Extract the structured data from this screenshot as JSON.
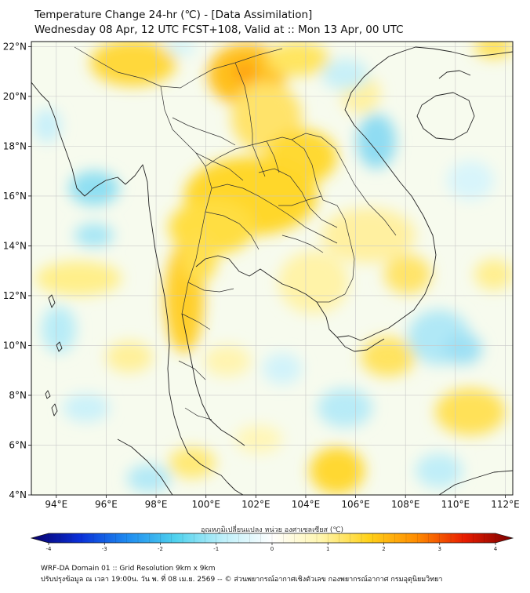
{
  "title": {
    "line1": "Temperature Change 24-hr (℃) - [Data Assimilation]",
    "line2": "Wednesday 08 Apr, 12 UTC FCST+108, Valid at :: Mon 13 Apr, 00 UTC"
  },
  "map": {
    "lat_labels": [
      "22°N",
      "20°N",
      "18°N",
      "16°N",
      "14°N",
      "12°N",
      "10°N",
      "8°N",
      "6°N",
      "4°N"
    ],
    "lat_values": [
      22,
      20,
      18,
      16,
      14,
      12,
      10,
      8,
      6,
      4
    ],
    "lon_labels": [
      "94°E",
      "96°E",
      "98°E",
      "100°E",
      "102°E",
      "104°E",
      "106°E",
      "108°E",
      "110°E",
      "112°E"
    ],
    "lon_values": [
      94,
      96,
      98,
      100,
      102,
      104,
      106,
      108,
      110,
      112
    ],
    "lon_range": [
      93,
      112.3
    ],
    "lat_range": [
      4,
      22.2
    ]
  },
  "colorbar": {
    "label": "อุณหภูมิเปลี่ยนแปลง หน่วย องศาเซลเซียส (℃)",
    "ticks": [
      "-4",
      "-3",
      "-2",
      "-1",
      "0",
      "1",
      "2",
      "3",
      "4"
    ],
    "tick_values": [
      -4,
      -3,
      -2,
      -1,
      0,
      1,
      2,
      3,
      4
    ],
    "range": [
      -4,
      4
    ],
    "stops": [
      "#08006b",
      "#0a2fd8",
      "#1e8cf0",
      "#4fd2ee",
      "#bff0fa",
      "#ffffff",
      "#fff6b0",
      "#ffd21a",
      "#ff8c00",
      "#e81c00",
      "#7a0000"
    ]
  },
  "footer": {
    "line1": "WRF-DA Domain 01 :: Grid Resolution 9km x 9km",
    "line2": "ปรับปรุงข้อมูล ณ เวลา 19:00น. วัน พ. ที่ 08 เม.ย. 2569 -- © ส่วนพยากรณ์อากาศเชิงตัวเลข กองพยากรณ์อากาศ กรมอุตุนิยมวิทยา"
  }
}
